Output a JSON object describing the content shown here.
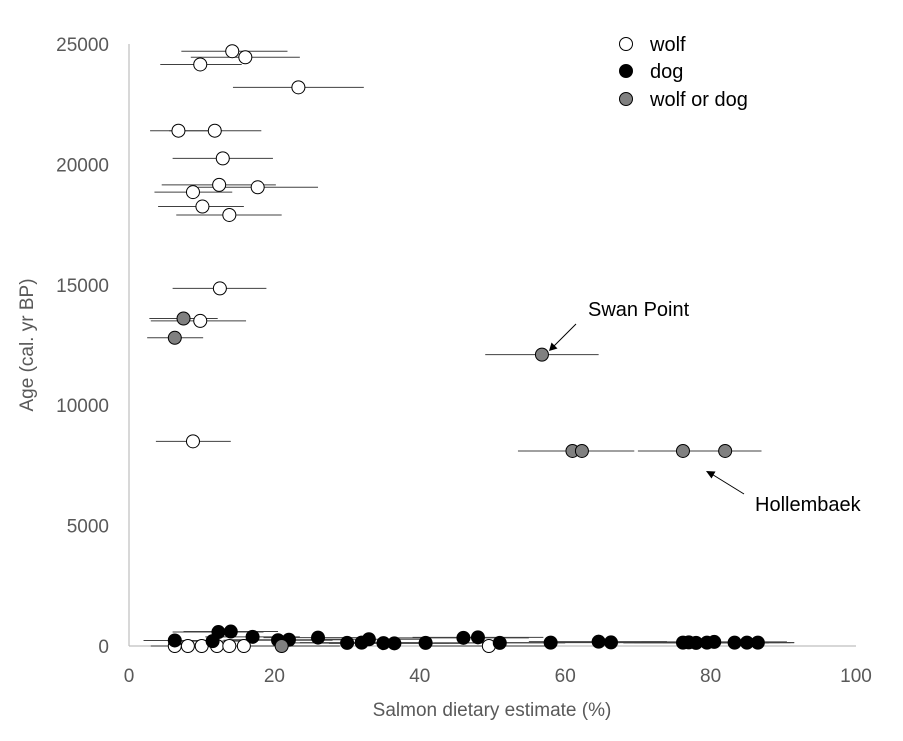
{
  "chart_data": {
    "type": "scatter",
    "xlabel": "Salmon dietary estimate (%)",
    "ylabel": "Age (cal. yr BP)",
    "xlim": [
      0,
      100
    ],
    "ylim": [
      0,
      25000
    ],
    "x_ticks": [
      0,
      20,
      40,
      60,
      80,
      100
    ],
    "y_ticks": [
      0,
      5000,
      10000,
      15000,
      20000,
      25000
    ],
    "grid": false,
    "legend_position": "top-right",
    "colors": {
      "wolf": "#ffffff",
      "dog": "#000000",
      "wolf_or_dog": "#808080",
      "errorbar": "#404040"
    },
    "series": [
      {
        "name": "wolf",
        "points": [
          {
            "x": 14.2,
            "y": 24700,
            "xmin": 7.2,
            "xmax": 21.8
          },
          {
            "x": 16.0,
            "y": 24450,
            "xmin": 8.5,
            "xmax": 23.5
          },
          {
            "x": 9.8,
            "y": 24150,
            "xmin": 4.3,
            "xmax": 15.5
          },
          {
            "x": 23.3,
            "y": 23200,
            "xmin": 14.3,
            "xmax": 32.3
          },
          {
            "x": 6.8,
            "y": 21400,
            "xmin": 2.9,
            "xmax": 11.5
          },
          {
            "x": 11.8,
            "y": 21400,
            "xmin": 5.5,
            "xmax": 18.2
          },
          {
            "x": 12.9,
            "y": 20250,
            "xmin": 6.0,
            "xmax": 19.8
          },
          {
            "x": 12.4,
            "y": 19150,
            "xmin": 4.5,
            "xmax": 20.2
          },
          {
            "x": 17.7,
            "y": 19050,
            "xmin": 9.5,
            "xmax": 26.0
          },
          {
            "x": 8.8,
            "y": 18850,
            "xmin": 3.5,
            "xmax": 14.2
          },
          {
            "x": 10.1,
            "y": 18250,
            "xmin": 4.0,
            "xmax": 15.8
          },
          {
            "x": 13.8,
            "y": 17900,
            "xmin": 6.5,
            "xmax": 21.0
          },
          {
            "x": 12.5,
            "y": 14850,
            "xmin": 6.0,
            "xmax": 18.9
          },
          {
            "x": 9.8,
            "y": 13500,
            "xmin": 3.0,
            "xmax": 16.1
          },
          {
            "x": 8.8,
            "y": 8500,
            "xmin": 3.7,
            "xmax": 14.0
          },
          {
            "x": 6.3,
            "y": 0,
            "xmin": 3.0,
            "xmax": 9.6
          },
          {
            "x": 8.1,
            "y": 0,
            "xmin": 4.3,
            "xmax": 12.3
          },
          {
            "x": 10.0,
            "y": 0,
            "xmin": 5.0,
            "xmax": 15.2
          },
          {
            "x": 12.1,
            "y": 0,
            "xmin": 6.5,
            "xmax": 17.8
          },
          {
            "x": 13.8,
            "y": 0,
            "xmin": 7.8,
            "xmax": 19.8
          },
          {
            "x": 15.8,
            "y": 0,
            "xmin": 9.8,
            "xmax": 22.0
          },
          {
            "x": 49.5,
            "y": 0,
            "xmin": 40.0,
            "xmax": 58.0
          }
        ]
      },
      {
        "name": "dog",
        "points": [
          {
            "x": 12.3,
            "y": 580,
            "xmin": 6.0,
            "xmax": 18.5
          },
          {
            "x": 14.0,
            "y": 600,
            "xmin": 7.5,
            "xmax": 20.5
          },
          {
            "x": 17.0,
            "y": 380,
            "xmin": 10.5,
            "xmax": 23.5
          },
          {
            "x": 26.0,
            "y": 350,
            "xmin": 18.5,
            "xmax": 33.5
          },
          {
            "x": 46.0,
            "y": 340,
            "xmin": 37.0,
            "xmax": 55.0
          },
          {
            "x": 48.0,
            "y": 360,
            "xmin": 39.0,
            "xmax": 57.0
          },
          {
            "x": 33.0,
            "y": 280,
            "xmin": 25.0,
            "xmax": 41.0
          },
          {
            "x": 22.0,
            "y": 260,
            "xmin": 14.0,
            "xmax": 30.0
          },
          {
            "x": 20.5,
            "y": 240,
            "xmin": 13.0,
            "xmax": 28.0
          },
          {
            "x": 6.3,
            "y": 230,
            "xmin": 2.0,
            "xmax": 10.6
          },
          {
            "x": 11.5,
            "y": 200,
            "xmin": 5.5,
            "xmax": 17.5
          },
          {
            "x": 30.0,
            "y": 130,
            "xmin": 21.5,
            "xmax": 38.5
          },
          {
            "x": 32.0,
            "y": 140,
            "xmin": 23.5,
            "xmax": 40.5
          },
          {
            "x": 35.0,
            "y": 120,
            "xmin": 26.0,
            "xmax": 44.0
          },
          {
            "x": 36.5,
            "y": 110,
            "xmin": 27.5,
            "xmax": 45.5
          },
          {
            "x": 40.8,
            "y": 130,
            "xmin": 31.5,
            "xmax": 50.0
          },
          {
            "x": 51.0,
            "y": 130,
            "xmin": 42.0,
            "xmax": 60.0
          },
          {
            "x": 58.0,
            "y": 140,
            "xmin": 48.5,
            "xmax": 67.5
          },
          {
            "x": 64.6,
            "y": 180,
            "xmin": 55.0,
            "xmax": 74.0
          },
          {
            "x": 66.3,
            "y": 150,
            "xmin": 57.0,
            "xmax": 75.5
          },
          {
            "x": 76.2,
            "y": 140,
            "xmin": 66.0,
            "xmax": 86.0
          },
          {
            "x": 77.0,
            "y": 150,
            "xmin": 67.0,
            "xmax": 87.0
          },
          {
            "x": 78.0,
            "y": 130,
            "xmin": 68.0,
            "xmax": 88.0
          },
          {
            "x": 79.5,
            "y": 140,
            "xmin": 69.5,
            "xmax": 89.5
          },
          {
            "x": 80.5,
            "y": 170,
            "xmin": 70.5,
            "xmax": 90.5
          },
          {
            "x": 83.3,
            "y": 140,
            "xmin": 73.5,
            "xmax": 91.0
          },
          {
            "x": 85.0,
            "y": 140,
            "xmin": 75.0,
            "xmax": 91.5
          },
          {
            "x": 86.5,
            "y": 140,
            "xmin": 76.5,
            "xmax": 91.5
          }
        ]
      },
      {
        "name": "wolf or dog",
        "points": [
          {
            "x": 7.5,
            "y": 13600,
            "xmin": 2.8,
            "xmax": 12.2
          },
          {
            "x": 6.3,
            "y": 12800,
            "xmin": 2.5,
            "xmax": 10.2
          },
          {
            "x": 56.8,
            "y": 12100,
            "xmin": 49.0,
            "xmax": 64.6
          },
          {
            "x": 61.0,
            "y": 8100,
            "xmin": 53.5,
            "xmax": 69.0
          },
          {
            "x": 62.3,
            "y": 8100,
            "xmin": 54.5,
            "xmax": 69.5
          },
          {
            "x": 76.2,
            "y": 8100,
            "xmin": 70.0,
            "xmax": 87.0
          },
          {
            "x": 82.0,
            "y": 8100,
            "xmin": 72.0,
            "xmax": 87.0
          },
          {
            "x": 21.0,
            "y": 0,
            "xmin": 13.0,
            "xmax": 29.0
          }
        ]
      }
    ],
    "annotations": [
      {
        "text": "Swan Point",
        "x": 57.5,
        "y": 12100
      },
      {
        "text": "Hollembaek",
        "x": 79.0,
        "y": 7400
      }
    ]
  }
}
